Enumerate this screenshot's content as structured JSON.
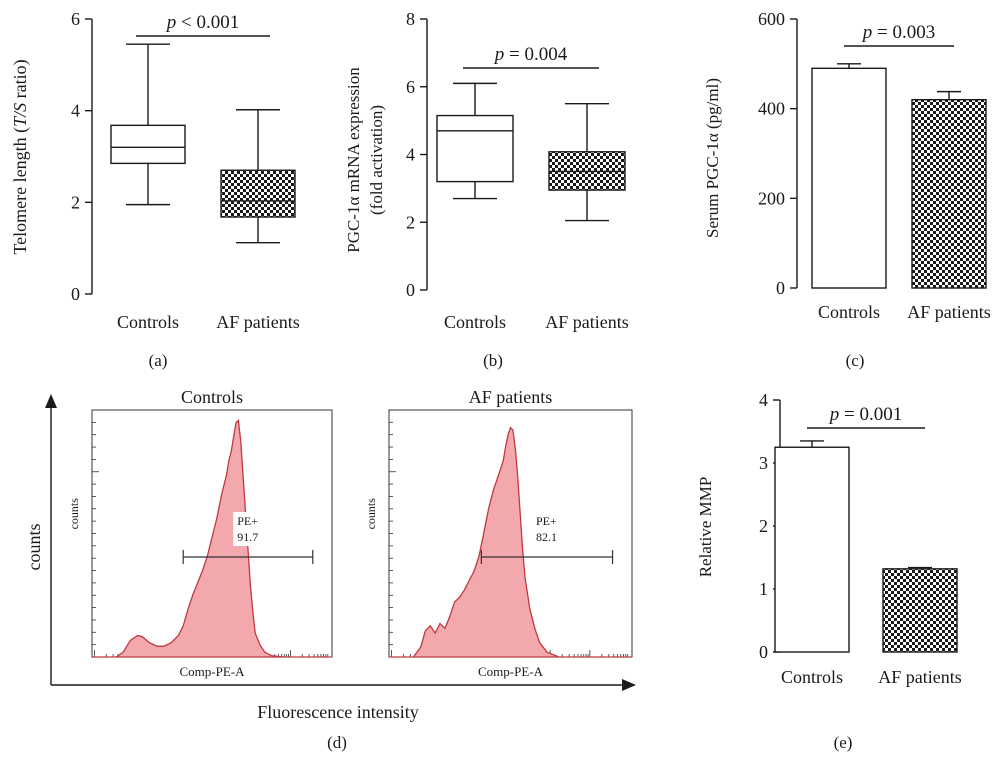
{
  "figure": {
    "panel_labels": [
      "(a)",
      "(b)",
      "(c)",
      "(d)",
      "(e)"
    ]
  },
  "colors": {
    "axis": "#1a1a1a",
    "histogram_fill": "#f3a8ad",
    "histogram_stroke": "#c0393f",
    "check_dark": "#1a1a1a",
    "check_light": "#ffffff"
  },
  "chart_data": [
    {
      "type": "box",
      "panel": "(a)",
      "ylabel_parts": [
        "Telomere length (",
        "T/S",
        " ratio)"
      ],
      "ylim": [
        0,
        6
      ],
      "yticks": [
        0,
        2,
        4,
        6
      ],
      "categories": [
        "Controls",
        "AF patients"
      ],
      "boxes": [
        {
          "name": "Controls",
          "min": 1.95,
          "q1": 2.85,
          "median": 3.2,
          "q3": 3.68,
          "max": 5.45,
          "pattern": "open"
        },
        {
          "name": "AF patients",
          "min": 1.12,
          "q1": 1.68,
          "median": 2.03,
          "q3": 2.7,
          "max": 4.02,
          "pattern": "checker"
        }
      ],
      "annotation": {
        "italic": "p",
        "text": " < 0.001"
      }
    },
    {
      "type": "box",
      "panel": "(b)",
      "ylabel_lines": [
        "PGC-1α mRNA expression",
        "(fold activation)"
      ],
      "ylim": [
        0,
        8
      ],
      "yticks": [
        0,
        2,
        4,
        6,
        8
      ],
      "categories": [
        "Controls",
        "AF patients"
      ],
      "boxes": [
        {
          "name": "Controls",
          "min": 2.7,
          "q1": 3.2,
          "median": 4.7,
          "q3": 5.15,
          "max": 6.1,
          "pattern": "open"
        },
        {
          "name": "AF patients",
          "min": 2.05,
          "q1": 2.95,
          "median": 3.5,
          "q3": 4.08,
          "max": 5.5,
          "pattern": "checker"
        }
      ],
      "annotation": {
        "italic": "p",
        "text": " = 0.004"
      }
    },
    {
      "type": "bar",
      "panel": "(c)",
      "ylabel": "Serum PGC-1α (pg/ml)",
      "ylim": [
        0,
        600
      ],
      "yticks": [
        0,
        200,
        400,
        600
      ],
      "categories": [
        "Controls",
        "AF patients"
      ],
      "values": [
        490,
        420
      ],
      "errors": [
        10,
        18
      ],
      "patterns": [
        "open",
        "checker"
      ],
      "annotation": {
        "italic": "p",
        "text": " = 0.003"
      }
    },
    {
      "type": "area",
      "panel": "(d)",
      "ylabel": "counts",
      "xlabel": "Fluorescence intensity",
      "histograms": [
        {
          "title": "Controls",
          "inner_ylabel": "counts",
          "inner_xlabel": "Comp-PE-A",
          "gate_name": "PE+",
          "gate_value": "91.7",
          "gate_range": [
            0.38,
            0.92
          ],
          "x": [
            0.0,
            0.1,
            0.13,
            0.16,
            0.19,
            0.21,
            0.24,
            0.27,
            0.3,
            0.33,
            0.36,
            0.38,
            0.4,
            0.42,
            0.44,
            0.46,
            0.48,
            0.5,
            0.52,
            0.54,
            0.56,
            0.57,
            0.58,
            0.59,
            0.6,
            0.61,
            0.62,
            0.63,
            0.64,
            0.65,
            0.66,
            0.67,
            0.68,
            0.7,
            0.72,
            0.75,
            0.8,
            0.9,
            1.0
          ],
          "y": [
            0,
            0,
            0.02,
            0.07,
            0.09,
            0.085,
            0.06,
            0.045,
            0.045,
            0.06,
            0.09,
            0.13,
            0.2,
            0.26,
            0.31,
            0.36,
            0.42,
            0.5,
            0.58,
            0.68,
            0.76,
            0.82,
            0.86,
            0.92,
            0.98,
            0.99,
            0.9,
            0.75,
            0.6,
            0.45,
            0.3,
            0.19,
            0.1,
            0.05,
            0.02,
            0.005,
            0,
            0,
            0
          ]
        },
        {
          "title": "AF patients",
          "inner_ylabel": "counts",
          "inner_xlabel": "Comp-PE-A",
          "gate_name": "PE+",
          "gate_value": "82.1",
          "gate_range": [
            0.38,
            0.92
          ],
          "x": [
            0.0,
            0.1,
            0.13,
            0.15,
            0.17,
            0.19,
            0.21,
            0.23,
            0.25,
            0.27,
            0.29,
            0.31,
            0.33,
            0.35,
            0.37,
            0.39,
            0.41,
            0.43,
            0.45,
            0.47,
            0.48,
            0.49,
            0.5,
            0.51,
            0.52,
            0.53,
            0.54,
            0.55,
            0.56,
            0.58,
            0.6,
            0.62,
            0.65,
            0.7,
            0.8,
            0.9,
            1.0
          ],
          "y": [
            0,
            0,
            0.04,
            0.11,
            0.13,
            0.1,
            0.14,
            0.12,
            0.17,
            0.23,
            0.25,
            0.28,
            0.32,
            0.36,
            0.42,
            0.52,
            0.62,
            0.7,
            0.76,
            0.82,
            0.88,
            0.93,
            0.96,
            0.95,
            0.87,
            0.75,
            0.6,
            0.45,
            0.33,
            0.2,
            0.12,
            0.06,
            0.02,
            0,
            0,
            0,
            0
          ]
        }
      ]
    },
    {
      "type": "bar",
      "panel": "(e)",
      "ylabel": "Relative MMP",
      "ylim": [
        0,
        4
      ],
      "yticks": [
        0,
        1,
        2,
        3,
        4
      ],
      "categories": [
        "Controls",
        "AF patients"
      ],
      "values": [
        3.25,
        1.32
      ],
      "errors": [
        0.1,
        0.02
      ],
      "patterns": [
        "open",
        "checker"
      ],
      "annotation": {
        "italic": "p",
        "text": " = 0.001"
      }
    }
  ]
}
